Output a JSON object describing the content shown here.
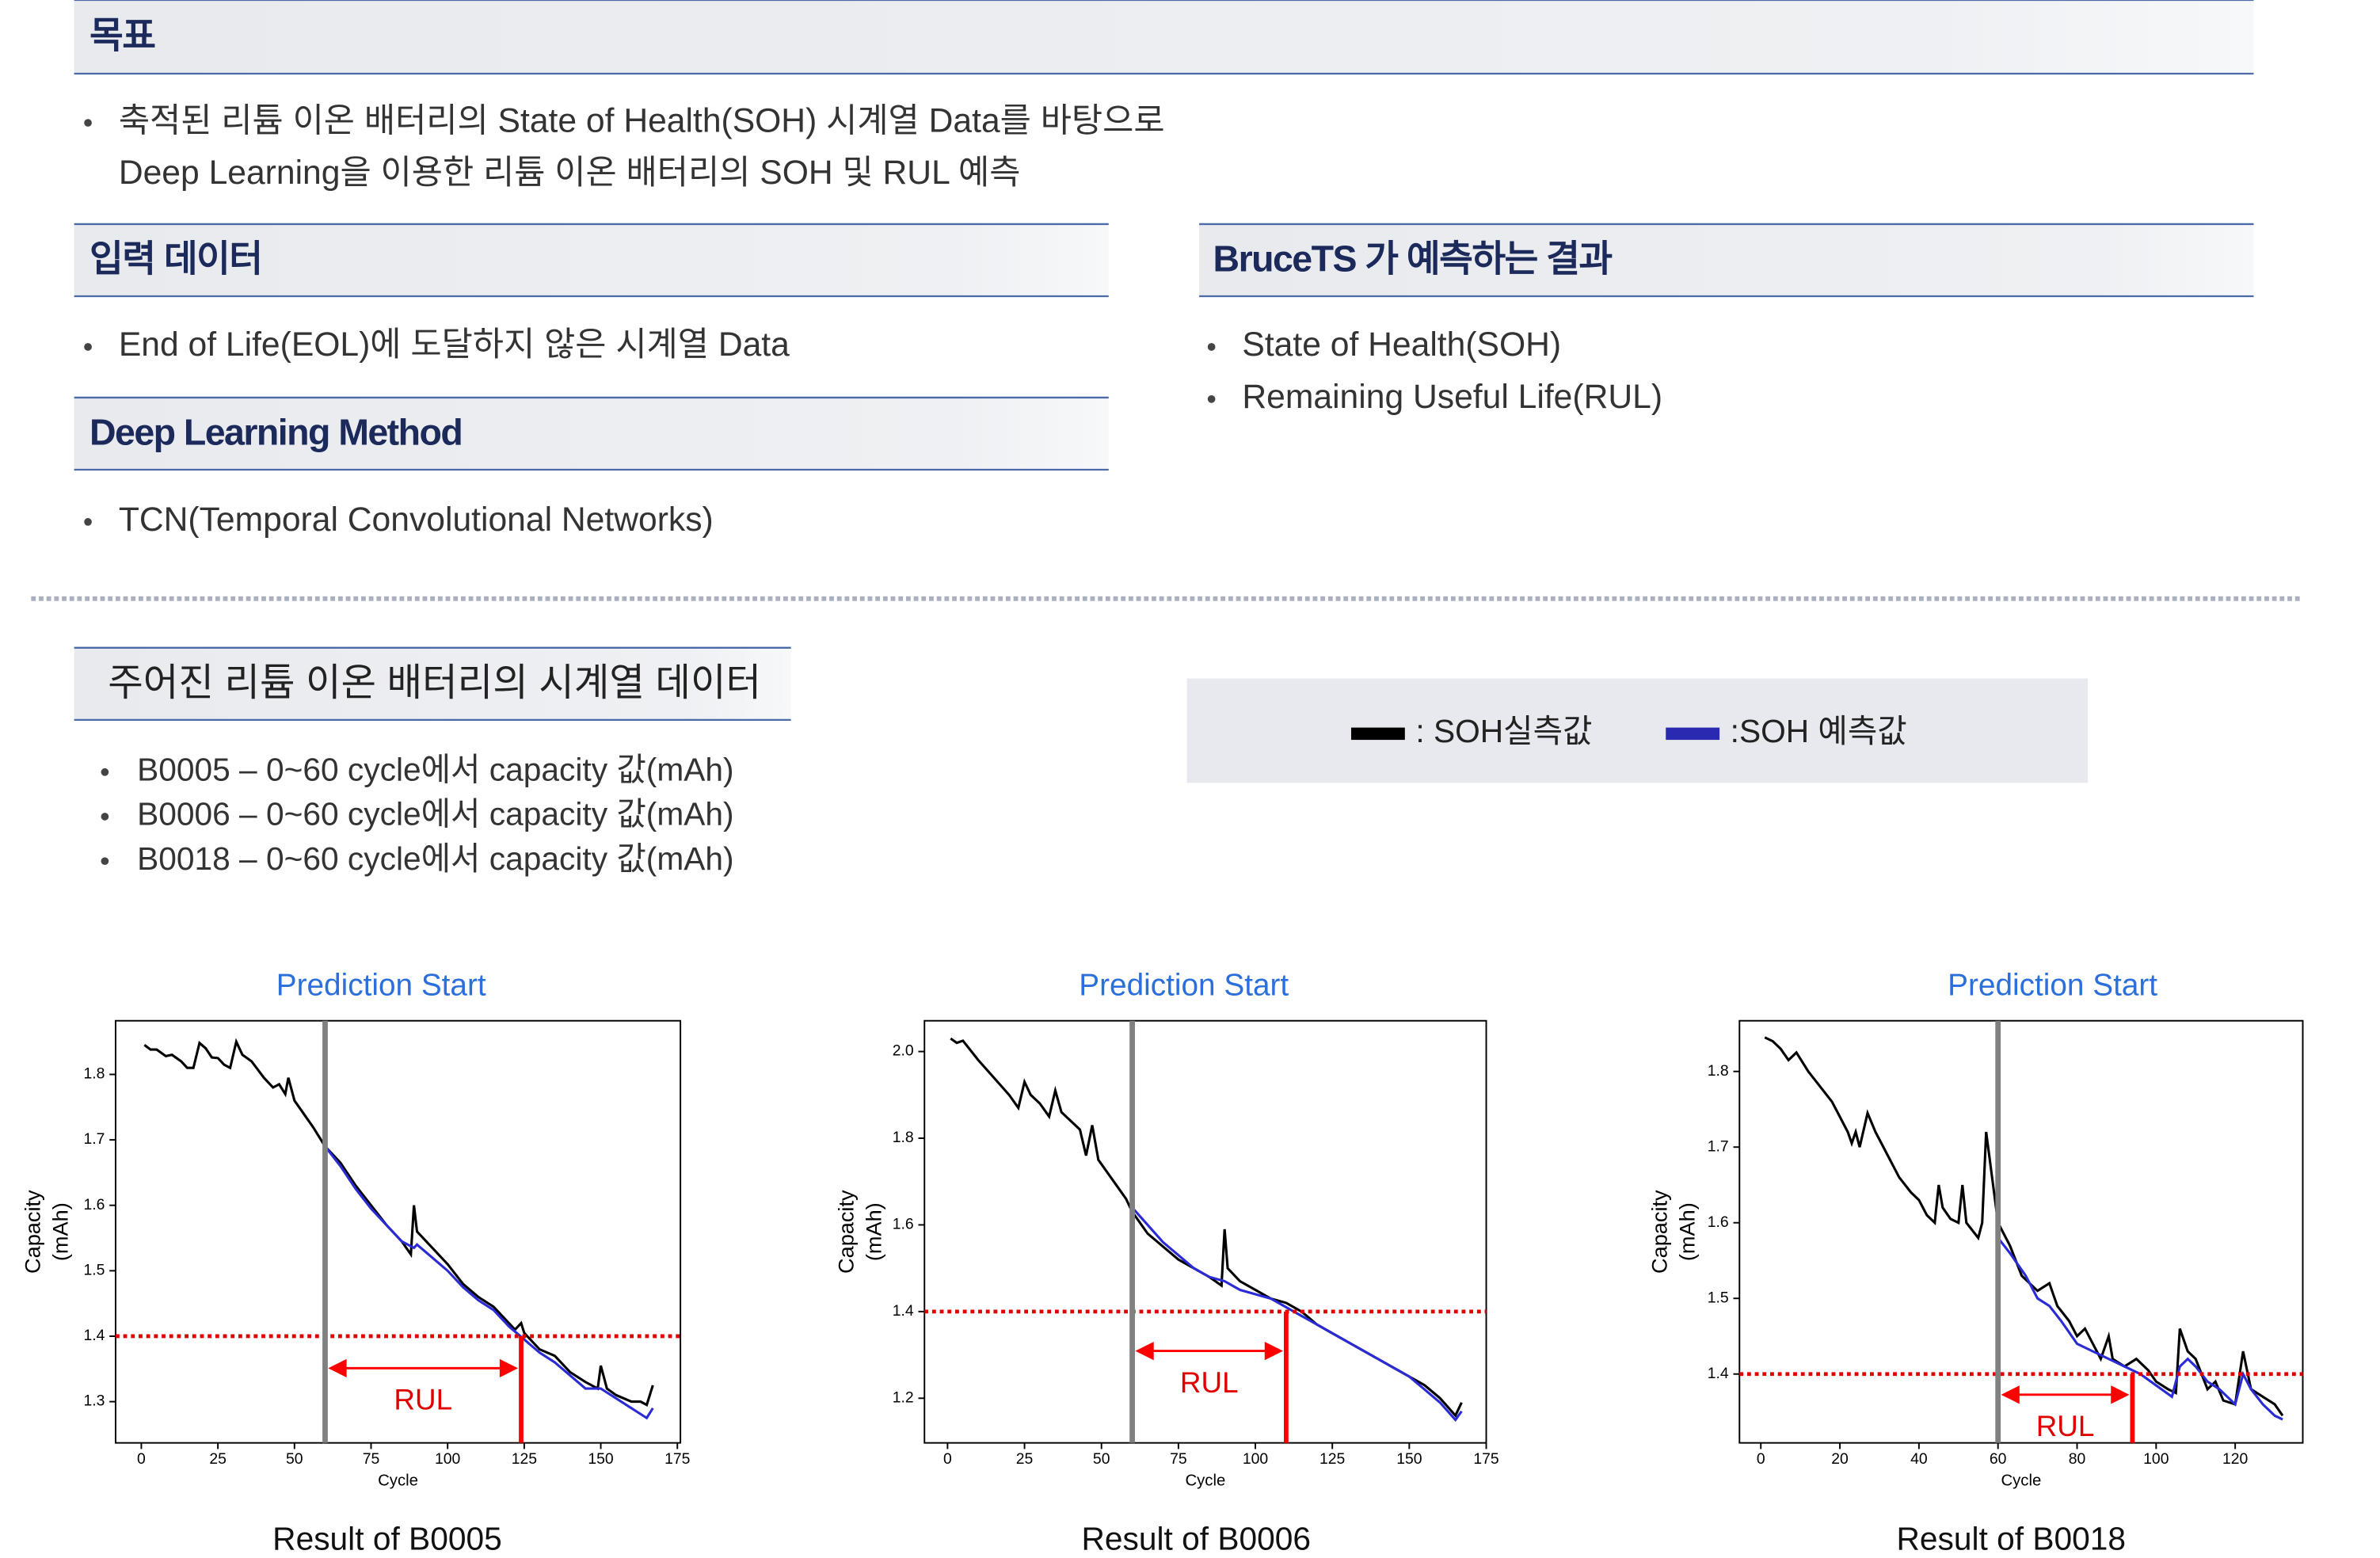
{
  "objective": {
    "title": "목표",
    "lines": [
      "축적된 리튬 이온 배터리의 State of Health(SOH) 시계열 Data를 바탕으로",
      "Deep Learning을 이용한 리튬 이온 배터리의 SOH 및 RUL 예측"
    ]
  },
  "input": {
    "title": "입력 데이터",
    "bullets": [
      "End of Life(EOL)에 도달하지 않은 시계열 Data"
    ]
  },
  "method": {
    "title": "Deep Learning Method",
    "bullets": [
      "TCN(Temporal Convolutional Networks)"
    ]
  },
  "results": {
    "title": "BruceTS 가 예측하는 결과",
    "bullets": [
      "State of Health(SOH)",
      "Remaining Useful Life(RUL)"
    ]
  },
  "dataset": {
    "title": "주어진 리튬 이온 배터리의 시계열 데이터",
    "bullets": [
      "B0005 – 0~60 cycle에서 capacity 값(mAh)",
      "B0006 – 0~60 cycle에서 capacity 값(mAh)",
      "B0018 – 0~60 cycle에서 capacity 값(mAh)"
    ]
  },
  "legend": {
    "items": [
      {
        "label": ": SOH실측값",
        "color": "#000000"
      },
      {
        "label": ":SOH 예측값",
        "color": "#2a2ab0"
      }
    ]
  },
  "chart_data": [
    {
      "type": "line",
      "annotation": "Prediction Start",
      "caption": "Result of B0005",
      "xlabel": "Cycle",
      "ylabel": [
        "Capacity",
        "(mAh)"
      ],
      "rul_label": "RUL",
      "xlim": [
        -8.4,
        176
      ],
      "ylim": [
        1.237,
        1.882
      ],
      "xticks": [
        0,
        25,
        50,
        75,
        100,
        125,
        150,
        175
      ],
      "yticks": [
        1.3,
        1.4,
        1.5,
        1.6,
        1.7,
        1.8
      ],
      "prediction_start": 60,
      "eol_cycle": 124,
      "threshold": 1.4,
      "series": [
        {
          "color": "#000000",
          "x": [
            1,
            3,
            5,
            8,
            10,
            13,
            15,
            17,
            19,
            21,
            23,
            25,
            27,
            29,
            31,
            33,
            36,
            40,
            43,
            45,
            47,
            48,
            50,
            53,
            56,
            60,
            65,
            70,
            75,
            80,
            85,
            88,
            89,
            90,
            95,
            100,
            105,
            110,
            115,
            120,
            122,
            124,
            125,
            130,
            135,
            140,
            145,
            149,
            150,
            152,
            155,
            160,
            163,
            165,
            167
          ],
          "values": [
            1.845,
            1.838,
            1.838,
            1.828,
            1.83,
            1.82,
            1.81,
            1.81,
            1.848,
            1.84,
            1.826,
            1.825,
            1.815,
            1.81,
            1.85,
            1.83,
            1.82,
            1.795,
            1.78,
            1.785,
            1.77,
            1.795,
            1.76,
            1.74,
            1.72,
            1.69,
            1.665,
            1.63,
            1.6,
            1.57,
            1.545,
            1.525,
            1.6,
            1.56,
            1.535,
            1.51,
            1.48,
            1.46,
            1.445,
            1.42,
            1.41,
            1.42,
            1.405,
            1.38,
            1.37,
            1.345,
            1.33,
            1.32,
            1.355,
            1.32,
            1.31,
            1.3,
            1.3,
            1.295,
            1.325
          ]
        },
        {
          "color": "#2b2bd6",
          "x": [
            60,
            65,
            70,
            75,
            80,
            85,
            89,
            90,
            95,
            100,
            105,
            110,
            115,
            120,
            125,
            130,
            135,
            140,
            145,
            150,
            155,
            160,
            165,
            167
          ],
          "values": [
            1.69,
            1.66,
            1.625,
            1.595,
            1.57,
            1.545,
            1.535,
            1.54,
            1.52,
            1.5,
            1.475,
            1.455,
            1.44,
            1.415,
            1.395,
            1.375,
            1.36,
            1.34,
            1.32,
            1.32,
            1.305,
            1.29,
            1.275,
            1.29
          ]
        }
      ]
    },
    {
      "type": "line",
      "annotation": "Prediction Start",
      "caption": "Result of B0006",
      "xlabel": "Cycle",
      "ylabel": [
        "Capacity",
        "(mAh)"
      ],
      "rul_label": "RUL",
      "xlim": [
        -7.5,
        175
      ],
      "ylim": [
        1.097,
        2.071
      ],
      "xticks": [
        0,
        25,
        50,
        75,
        100,
        125,
        150,
        175
      ],
      "yticks": [
        1.2,
        1.4,
        1.6,
        1.8,
        {
          "value": 2.0,
          "label": "2.0"
        }
      ],
      "prediction_start": 60,
      "eol_cycle": 110,
      "threshold": 1.4,
      "series": [
        {
          "color": "#000000",
          "x": [
            1,
            3,
            5,
            10,
            15,
            20,
            23,
            25,
            27,
            30,
            33,
            35,
            37,
            40,
            43,
            45,
            47,
            49,
            52,
            55,
            58,
            60,
            65,
            70,
            75,
            80,
            85,
            89,
            90,
            91,
            95,
            100,
            105,
            110,
            115,
            120,
            125,
            130,
            135,
            140,
            145,
            150,
            155,
            160,
            165,
            167
          ],
          "values": [
            2.03,
            2.02,
            2.025,
            1.98,
            1.94,
            1.9,
            1.87,
            1.93,
            1.9,
            1.88,
            1.85,
            1.91,
            1.86,
            1.84,
            1.82,
            1.76,
            1.83,
            1.75,
            1.72,
            1.69,
            1.66,
            1.63,
            1.58,
            1.55,
            1.52,
            1.5,
            1.48,
            1.46,
            1.59,
            1.5,
            1.47,
            1.45,
            1.43,
            1.42,
            1.4,
            1.37,
            1.35,
            1.33,
            1.31,
            1.29,
            1.27,
            1.25,
            1.23,
            1.2,
            1.16,
            1.19
          ]
        },
        {
          "color": "#2b2bd6",
          "x": [
            60,
            65,
            70,
            75,
            80,
            85,
            90,
            95,
            100,
            105,
            110,
            115,
            120,
            125,
            130,
            135,
            140,
            145,
            150,
            155,
            160,
            165,
            167
          ],
          "values": [
            1.64,
            1.6,
            1.56,
            1.53,
            1.5,
            1.48,
            1.47,
            1.45,
            1.44,
            1.43,
            1.41,
            1.39,
            1.37,
            1.35,
            1.33,
            1.31,
            1.29,
            1.27,
            1.25,
            1.22,
            1.19,
            1.15,
            1.17
          ]
        }
      ]
    },
    {
      "type": "line",
      "annotation": "Prediction Start",
      "caption": "Result of B0018",
      "xlabel": "Cycle",
      "ylabel": [
        "Capacity",
        "(mAh)"
      ],
      "rul_label": "RUL",
      "xlim": [
        -5.4,
        137.1
      ],
      "ylim": [
        1.309,
        1.867
      ],
      "xticks": [
        0,
        20,
        40,
        60,
        80,
        100,
        120
      ],
      "yticks": [
        1.4,
        1.5,
        1.6,
        1.7,
        1.8
      ],
      "prediction_start": 60,
      "eol_cycle": 94,
      "threshold": 1.4,
      "series": [
        {
          "color": "#000000",
          "x": [
            1,
            3,
            5,
            7,
            9,
            12,
            15,
            18,
            20,
            22,
            23,
            24,
            25,
            27,
            29,
            32,
            35,
            38,
            40,
            42,
            44,
            45,
            46,
            48,
            50,
            51,
            52,
            55,
            56,
            57,
            58,
            60,
            63,
            66,
            70,
            73,
            75,
            78,
            80,
            82,
            84,
            86,
            88,
            89,
            92,
            95,
            98,
            100,
            103,
            105,
            106,
            108,
            110,
            113,
            115,
            117,
            120,
            122,
            124,
            127,
            130,
            132
          ],
          "values": [
            1.845,
            1.84,
            1.83,
            1.815,
            1.825,
            1.8,
            1.78,
            1.76,
            1.74,
            1.72,
            1.705,
            1.72,
            1.7,
            1.745,
            1.72,
            1.69,
            1.66,
            1.64,
            1.63,
            1.61,
            1.6,
            1.65,
            1.62,
            1.605,
            1.6,
            1.65,
            1.6,
            1.58,
            1.6,
            1.72,
            1.68,
            1.6,
            1.57,
            1.53,
            1.51,
            1.52,
            1.49,
            1.47,
            1.45,
            1.46,
            1.44,
            1.42,
            1.45,
            1.42,
            1.41,
            1.42,
            1.405,
            1.39,
            1.38,
            1.375,
            1.46,
            1.43,
            1.42,
            1.38,
            1.39,
            1.365,
            1.36,
            1.43,
            1.38,
            1.37,
            1.36,
            1.345
          ]
        },
        {
          "color": "#2b2bd6",
          "x": [
            60,
            63,
            67,
            70,
            73,
            76,
            80,
            84,
            88,
            92,
            96,
            100,
            104,
            106,
            108,
            110,
            113,
            116,
            120,
            122,
            124,
            127,
            130,
            132
          ],
          "values": [
            1.58,
            1.56,
            1.53,
            1.5,
            1.49,
            1.47,
            1.44,
            1.43,
            1.42,
            1.41,
            1.4,
            1.385,
            1.37,
            1.41,
            1.42,
            1.41,
            1.39,
            1.38,
            1.36,
            1.4,
            1.38,
            1.36,
            1.345,
            1.34
          ]
        }
      ]
    }
  ]
}
